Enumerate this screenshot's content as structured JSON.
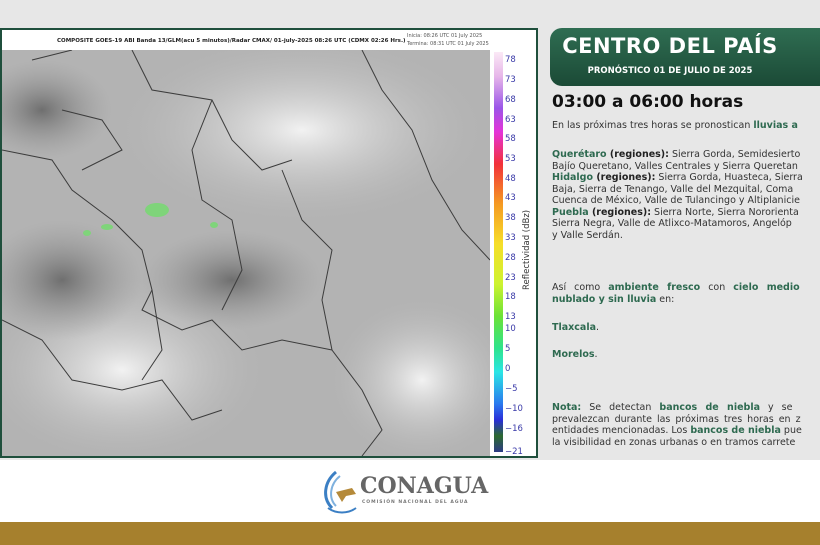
{
  "map": {
    "title": "COMPOSITE GOES-19 ABI Banda 13/GLM(acu 5 minutos)/Radar CMAX/ 01-july-2025 08:26 UTC  (CDMX  02:26 Hrs.)",
    "start": "Inicia: 08:26 UTC 01 July 2025",
    "end": "Termina: 08:31 UTC 01 July 2025",
    "colorbar_label": "Reflectividad (dBz)",
    "ticks": [
      "78",
      "73",
      "68",
      "63",
      "58",
      "53",
      "48",
      "43",
      "38",
      "33",
      "28",
      "23",
      "18",
      "13",
      "10",
      "5",
      "0",
      "−5",
      "−10",
      "−16",
      "−21"
    ]
  },
  "panel": {
    "title": "CENTRO DEL PAÍS",
    "subtitle": "PRONÓSTICO 01 DE JULIO DE 2025",
    "hours": "03:00 a 06:00 horas",
    "intro": "En las próximas tres horas se pronostican ",
    "intro_hl": "lluvias a",
    "qro_name": "Querétaro",
    "qro_reg": " (regiones):",
    "qro_1": " Sierra Gorda, Semidesierto",
    "qro_2": "Bajío Queretano, Valles Centrales y Sierra Queretan",
    "hgo_name": "Hidalgo",
    "hgo_reg": " (regiones):",
    "hgo_1": " Sierra Gorda, Huasteca, Sierra",
    "hgo_2": "Baja, Sierra de Tenango, Valle del Mezquital, Coma",
    "hgo_3": "Cuenca de México, Valle de Tulancingo y Altiplanicie",
    "pue_name": "Puebla",
    "pue_reg": " (regiones):",
    "pue_1": " Sierra Norte, Sierra Nororienta",
    "pue_2": "Sierra Negra, Valle de Atlixco-Matamoros, Angelóp",
    "pue_3": "y Valle Serdán.",
    "asi": "Así como ",
    "ambiente": "ambiente fresco",
    "con": " con ",
    "cielo": "cielo medio",
    "nublado": "nublado y sin lluvia",
    "en": " en:",
    "tlaxcala": "Tlaxcala",
    "morelos": "Morelos",
    "dot": ".",
    "nota": "Nota:",
    "n1": " Se detectan ",
    "bancos": "bancos de niebla",
    "n2": " y se",
    "n3": "prevalezcan durante las próximas tres horas en z",
    "n4a": "entidades mencionadas. Los ",
    "n4b": " pue",
    "n5": "la visibilidad en zonas urbanas o en tramos carrete"
  },
  "footer": {
    "logo": "CONAGUA",
    "logo_sub": "COMISIÓN NACIONAL DEL AGUA"
  },
  "colors": {
    "green": "#1f4f3c",
    "gold": "#a6802d",
    "accent_text": "#2e6a50"
  }
}
